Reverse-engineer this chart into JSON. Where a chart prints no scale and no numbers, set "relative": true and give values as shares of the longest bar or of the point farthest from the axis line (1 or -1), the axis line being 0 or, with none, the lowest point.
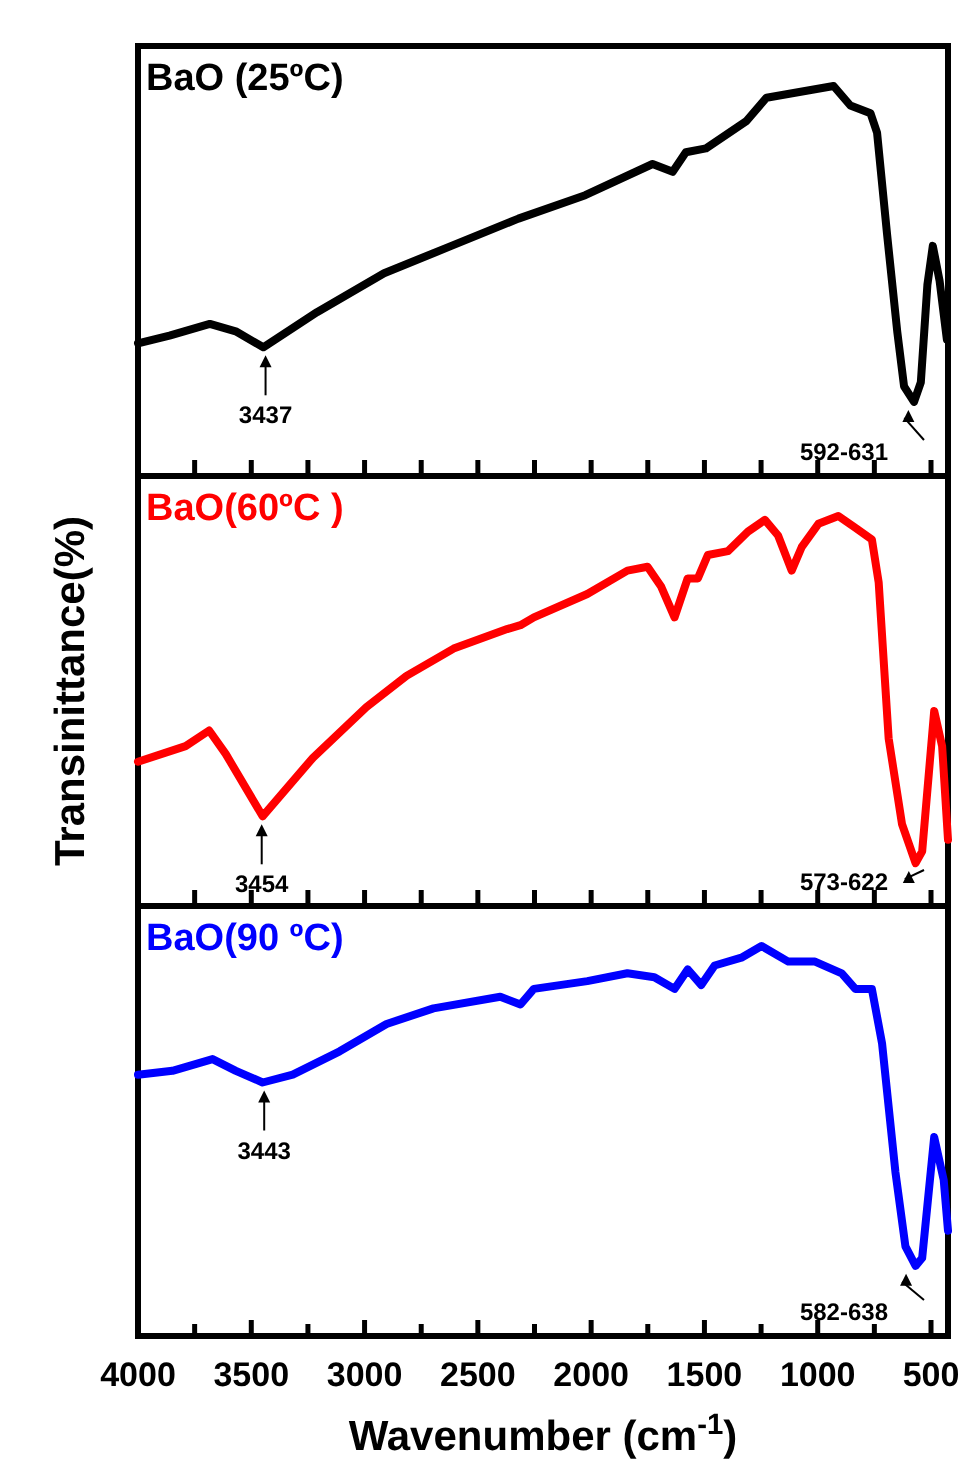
{
  "chart_data": [
    {
      "type": "line",
      "title": "BaO (25ºC)",
      "relative": true,
      "xlim": [
        4000,
        425
      ],
      "tick_labels": false,
      "line_style": "solid",
      "marker": "none",
      "xticks": [
        {
          "value": 4000,
          "label": null
        },
        {
          "value": 3750,
          "label": null
        },
        {
          "value": 3500,
          "label": null
        },
        {
          "value": 3250,
          "label": null
        },
        {
          "value": 3000,
          "label": null
        },
        {
          "value": 2750,
          "label": null
        },
        {
          "value": 2500,
          "label": null
        },
        {
          "value": 2250,
          "label": null
        },
        {
          "value": 2000,
          "label": null
        },
        {
          "value": 1750,
          "label": null
        },
        {
          "value": 1500,
          "label": null
        },
        {
          "value": 1250,
          "label": null
        },
        {
          "value": 1000,
          "label": null
        },
        {
          "value": 750,
          "label": null
        },
        {
          "value": 500,
          "label": null
        }
      ],
      "x": [
        4000,
        3861,
        3683,
        3565,
        3447,
        3210,
        2914,
        2617,
        2321,
        2026,
        1729,
        1640,
        1582,
        1493,
        1315,
        1226,
        930,
        856,
        767,
        738,
        694,
        649,
        619,
        575,
        545,
        516,
        492,
        462,
        430
      ],
      "series": [
        {
          "color": "#000000",
          "values": [
            0.34,
            0.36,
            0.39,
            0.37,
            0.33,
            0.42,
            0.52,
            0.59,
            0.66,
            0.72,
            0.8,
            0.78,
            0.83,
            0.84,
            0.91,
            0.97,
            1.0,
            0.95,
            0.93,
            0.88,
            0.62,
            0.37,
            0.23,
            0.19,
            0.24,
            0.49,
            0.59,
            0.5,
            0.35
          ]
        }
      ],
      "annotations": [
        {
          "text": "3437",
          "x": 3437,
          "y": 0.33
        },
        {
          "text": "592-631",
          "x": 600,
          "y": 0.19
        }
      ]
    },
    {
      "type": "line",
      "title": "BaO(60ºC )",
      "ylabel": "Transinittance(%)",
      "relative": true,
      "xlim": [
        4000,
        425
      ],
      "tick_labels": false,
      "line_style": "solid",
      "marker": "none",
      "xticks": [
        {
          "value": 4000,
          "label": null
        },
        {
          "value": 3750,
          "label": null
        },
        {
          "value": 3500,
          "label": null
        },
        {
          "value": 3250,
          "label": null
        },
        {
          "value": 3000,
          "label": null
        },
        {
          "value": 2750,
          "label": null
        },
        {
          "value": 2500,
          "label": null
        },
        {
          "value": 2250,
          "label": null
        },
        {
          "value": 2000,
          "label": null
        },
        {
          "value": 1750,
          "label": null
        },
        {
          "value": 1500,
          "label": null
        },
        {
          "value": 1250,
          "label": null
        },
        {
          "value": 1000,
          "label": null
        },
        {
          "value": 750,
          "label": null
        },
        {
          "value": 500,
          "label": null
        }
      ],
      "x": [
        4000,
        3790,
        3686,
        3613,
        3450,
        3228,
        2992,
        2815,
        2607,
        2371,
        2312,
        2253,
        2017,
        1840,
        1751,
        1692,
        1632,
        1574,
        1529,
        1485,
        1396,
        1308,
        1233,
        1175,
        1115,
        1071,
        997,
        909,
        834,
        761,
        731,
        687,
        628,
        568,
        539,
        486,
        451,
        425
      ],
      "series": [
        {
          "color": "#ff0000",
          "values": [
            0.37,
            0.41,
            0.45,
            0.39,
            0.23,
            0.38,
            0.51,
            0.59,
            0.66,
            0.71,
            0.72,
            0.74,
            0.8,
            0.86,
            0.87,
            0.82,
            0.74,
            0.84,
            0.84,
            0.9,
            0.91,
            0.96,
            0.99,
            0.95,
            0.86,
            0.92,
            0.98,
            1.0,
            0.97,
            0.94,
            0.83,
            0.43,
            0.21,
            0.11,
            0.14,
            0.5,
            0.41,
            0.17
          ]
        }
      ],
      "annotations": [
        {
          "text": "3454",
          "x": 3454,
          "y": 0.23
        },
        {
          "text": "573-622",
          "x": 598,
          "y": 0.11
        }
      ]
    },
    {
      "type": "line",
      "title": "BaO(90 ºC)",
      "xlabel": "Wavenumber (cm$^{-1}$)",
      "relative": true,
      "xlim": [
        4000,
        425
      ],
      "tick_labels": "x",
      "line_style": "solid",
      "marker": "none",
      "xticks": [
        4000,
        {
          "value": 3750,
          "label": null
        },
        3500,
        {
          "value": 3250,
          "label": null
        },
        3000,
        {
          "value": 2750,
          "label": null
        },
        2500,
        {
          "value": 2250,
          "label": null
        },
        2000,
        {
          "value": 1750,
          "label": null
        },
        1500,
        {
          "value": 1250,
          "label": null
        },
        1000,
        {
          "value": 750,
          "label": null
        },
        500
      ],
      "x": [
        4000,
        3848,
        3671,
        3568,
        3450,
        3317,
        3110,
        2903,
        2696,
        2401,
        2312,
        2253,
        2017,
        1840,
        1721,
        1632,
        1574,
        1514,
        1455,
        1337,
        1248,
        1130,
        1012,
        894,
        834,
        761,
        716,
        657,
        613,
        568,
        539,
        486,
        444,
        425
      ],
      "series": [
        {
          "color": "#0000ff",
          "values": [
            0.67,
            0.68,
            0.71,
            0.68,
            0.65,
            0.67,
            0.73,
            0.8,
            0.84,
            0.87,
            0.85,
            0.89,
            0.91,
            0.93,
            0.92,
            0.89,
            0.94,
            0.9,
            0.95,
            0.97,
            1.0,
            0.96,
            0.96,
            0.93,
            0.89,
            0.89,
            0.75,
            0.42,
            0.23,
            0.18,
            0.2,
            0.51,
            0.4,
            0.27
          ]
        }
      ],
      "annotations": [
        {
          "text": "3443",
          "x": 3443,
          "y": 0.65
        },
        {
          "text": "582-638",
          "x": 610,
          "y": 0.18
        }
      ]
    }
  ]
}
